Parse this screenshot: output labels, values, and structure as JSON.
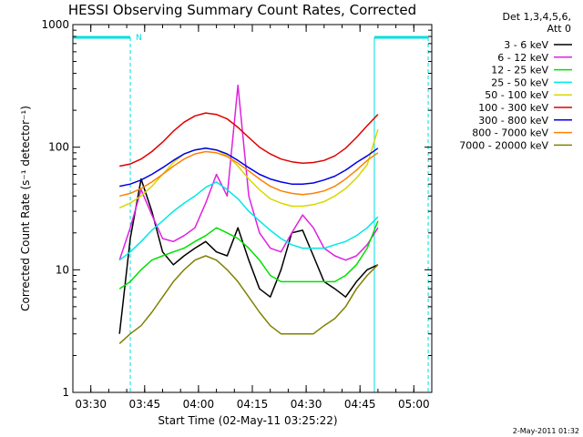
{
  "chart_data": {
    "type": "line",
    "title": "HESSI Observing Summary Count Rates, Corrected",
    "xlabel": "Start Time (02-May-11 03:25:22)",
    "ylabel": "Corrected Count Rate (s⁻¹ detector⁻¹)",
    "yscale": "log",
    "ylim": [
      1,
      1000
    ],
    "xlim": [
      "03:25",
      "05:05"
    ],
    "xticks": [
      "03:30",
      "03:45",
      "04:00",
      "04:15",
      "04:30",
      "04:45",
      "05:00"
    ],
    "yticks": [
      "1",
      "10",
      "100",
      "1000"
    ],
    "legend_header": [
      "Det 1,3,4,5,6,",
      "Att 0"
    ],
    "legend_position": "right",
    "night_marker_label": "N",
    "night_bar_color": "#00e0e0",
    "night_intervals": [
      [
        "03:25",
        "03:41"
      ],
      [
        "04:49",
        "05:04"
      ]
    ],
    "series": [
      {
        "name": "3 - 6 keV",
        "color": "#000000",
        "x": [
          "03:38",
          "03:41",
          "03:44",
          "03:47",
          "03:50",
          "03:53",
          "03:56",
          "03:59",
          "04:02",
          "04:05",
          "04:08",
          "04:11",
          "04:14",
          "04:17",
          "04:20",
          "04:23",
          "04:26",
          "04:29",
          "04:32",
          "04:35",
          "04:38",
          "04:41",
          "04:44",
          "04:47",
          "04:50"
        ],
        "y": [
          3,
          18,
          55,
          30,
          14,
          11,
          13,
          15,
          17,
          14,
          13,
          22,
          12,
          7,
          6,
          10,
          20,
          21,
          13,
          8,
          7,
          6,
          8,
          10,
          11
        ]
      },
      {
        "name": "6 - 12 keV",
        "color": "#e020e0",
        "x": [
          "03:38",
          "03:41",
          "03:44",
          "03:47",
          "03:50",
          "03:53",
          "03:56",
          "03:59",
          "04:02",
          "04:05",
          "04:08",
          "04:11",
          "04:14",
          "04:17",
          "04:20",
          "04:23",
          "04:26",
          "04:29",
          "04:32",
          "04:35",
          "04:38",
          "04:41",
          "04:44",
          "04:47",
          "04:50"
        ],
        "y": [
          12,
          22,
          45,
          28,
          18,
          17,
          19,
          22,
          35,
          60,
          40,
          320,
          40,
          20,
          15,
          14,
          20,
          28,
          22,
          15,
          13,
          12,
          13,
          16,
          22
        ]
      },
      {
        "name": "12 - 25 keV",
        "color": "#00e000",
        "x": [
          "03:38",
          "03:41",
          "03:44",
          "03:47",
          "03:50",
          "03:53",
          "03:56",
          "03:59",
          "04:02",
          "04:05",
          "04:08",
          "04:11",
          "04:14",
          "04:17",
          "04:20",
          "04:23",
          "04:26",
          "04:29",
          "04:32",
          "04:35",
          "04:38",
          "04:41",
          "04:44",
          "04:47",
          "04:50"
        ],
        "y": [
          7,
          8,
          10,
          12,
          13,
          14,
          15,
          17,
          19,
          22,
          20,
          18,
          15,
          12,
          9,
          8,
          8,
          8,
          8,
          8,
          8,
          9,
          11,
          15,
          25
        ]
      },
      {
        "name": "25 - 50 keV",
        "color": "#00e8e8",
        "x": [
          "03:38",
          "03:41",
          "03:44",
          "03:47",
          "03:50",
          "03:53",
          "03:56",
          "03:59",
          "04:02",
          "04:05",
          "04:08",
          "04:11",
          "04:14",
          "04:17",
          "04:20",
          "04:23",
          "04:26",
          "04:29",
          "04:32",
          "04:35",
          "04:38",
          "04:41",
          "04:44",
          "04:47",
          "04:50"
        ],
        "y": [
          12,
          14,
          17,
          21,
          25,
          30,
          35,
          40,
          47,
          52,
          45,
          38,
          30,
          25,
          21,
          18,
          16,
          15,
          15,
          15,
          16,
          17,
          19,
          22,
          27
        ]
      },
      {
        "name": "50 - 100 keV",
        "color": "#d8d800",
        "x": [
          "03:38",
          "03:41",
          "03:44",
          "03:47",
          "03:50",
          "03:53",
          "03:56",
          "03:59",
          "04:02",
          "04:05",
          "04:08",
          "04:11",
          "04:14",
          "04:17",
          "04:20",
          "04:23",
          "04:26",
          "04:29",
          "04:32",
          "04:35",
          "04:38",
          "04:41",
          "04:44",
          "04:47",
          "04:50"
        ],
        "y": [
          32,
          35,
          40,
          48,
          60,
          75,
          88,
          95,
          98,
          95,
          85,
          70,
          55,
          45,
          38,
          35,
          33,
          33,
          34,
          36,
          40,
          46,
          56,
          72,
          140
        ]
      },
      {
        "name": "100 - 300 keV",
        "color": "#e00000",
        "x": [
          "03:38",
          "03:41",
          "03:44",
          "03:47",
          "03:50",
          "03:53",
          "03:56",
          "03:59",
          "04:02",
          "04:05",
          "04:08",
          "04:11",
          "04:14",
          "04:17",
          "04:20",
          "04:23",
          "04:26",
          "04:29",
          "04:32",
          "04:35",
          "04:38",
          "04:41",
          "04:44",
          "04:47",
          "04:50"
        ],
        "y": [
          70,
          73,
          80,
          92,
          110,
          135,
          160,
          180,
          190,
          185,
          170,
          145,
          120,
          100,
          88,
          80,
          76,
          74,
          75,
          78,
          85,
          98,
          120,
          150,
          185
        ]
      },
      {
        "name": "300 - 800 keV",
        "color": "#0000e8",
        "x": [
          "03:38",
          "03:41",
          "03:44",
          "03:47",
          "03:50",
          "03:53",
          "03:56",
          "03:59",
          "04:02",
          "04:05",
          "04:08",
          "04:11",
          "04:14",
          "04:17",
          "04:20",
          "04:23",
          "04:26",
          "04:29",
          "04:32",
          "04:35",
          "04:38",
          "04:41",
          "04:44",
          "04:47",
          "04:50"
        ],
        "y": [
          48,
          50,
          54,
          60,
          68,
          78,
          88,
          95,
          98,
          95,
          88,
          78,
          68,
          60,
          55,
          52,
          50,
          50,
          51,
          54,
          58,
          65,
          75,
          85,
          98
        ]
      },
      {
        "name": "800 - 7000 keV",
        "color": "#ff8000",
        "x": [
          "03:38",
          "03:41",
          "03:44",
          "03:47",
          "03:50",
          "03:53",
          "03:56",
          "03:59",
          "04:02",
          "04:05",
          "04:08",
          "04:11",
          "04:14",
          "04:17",
          "04:20",
          "04:23",
          "04:26",
          "04:29",
          "04:32",
          "04:35",
          "04:38",
          "04:41",
          "04:44",
          "04:47",
          "04:50"
        ],
        "y": [
          40,
          42,
          46,
          52,
          60,
          70,
          80,
          88,
          92,
          90,
          84,
          74,
          64,
          55,
          48,
          44,
          42,
          41,
          42,
          44,
          48,
          55,
          65,
          78,
          90
        ]
      },
      {
        "name": "7000 - 20000 keV",
        "color": "#808000",
        "x": [
          "03:38",
          "03:41",
          "03:44",
          "03:47",
          "03:50",
          "03:53",
          "03:56",
          "03:59",
          "04:02",
          "04:05",
          "04:08",
          "04:11",
          "04:14",
          "04:17",
          "04:20",
          "04:23",
          "04:26",
          "04:29",
          "04:32",
          "04:35",
          "04:38",
          "04:41",
          "04:44",
          "04:47",
          "04:50"
        ],
        "y": [
          2.5,
          3,
          3.5,
          4.5,
          6,
          8,
          10,
          12,
          13,
          12,
          10,
          8,
          6,
          4.5,
          3.5,
          3,
          3,
          3,
          3,
          3.5,
          4,
          5,
          7,
          9,
          11
        ]
      }
    ]
  },
  "footer_stamp": "2-May-2011 01:32"
}
